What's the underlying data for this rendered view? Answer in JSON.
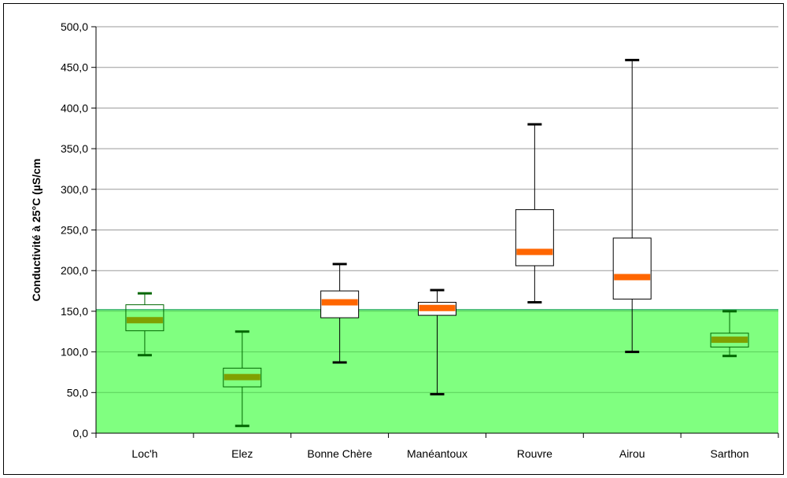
{
  "chart_data": {
    "type": "box",
    "ylabel": "Conductivité à 25°C (µS/cm",
    "ylim": [
      0,
      500
    ],
    "y_ticks": [
      0,
      50,
      100,
      150,
      200,
      250,
      300,
      350,
      400,
      450,
      500
    ],
    "y_tick_labels": [
      "0,0",
      "50,0",
      "100,0",
      "150,0",
      "200,0",
      "250,0",
      "300,0",
      "350,0",
      "400,0",
      "450,0",
      "500,0"
    ],
    "grid": true,
    "threshold_band": {
      "from": 0,
      "to": 152,
      "color": "#80ff80"
    },
    "colors": {
      "median_within_band": "#80a000",
      "median_above_band": "#ff6600",
      "whisker_within_band": "#006600",
      "whisker_above_band": "#000000",
      "band_edge": "#3cb371"
    },
    "categories": [
      "Loc'h",
      "Elez",
      "Bonne Chère",
      "Manéantoux",
      "Rouvre",
      "Airou",
      "Sarthon"
    ],
    "boxes": [
      {
        "min": 96,
        "q1": 126,
        "median": 139,
        "q3": 158,
        "max": 172
      },
      {
        "min": 9,
        "q1": 57,
        "median": 69,
        "q3": 80,
        "max": 125
      },
      {
        "min": 87,
        "q1": 142,
        "median": 161,
        "q3": 175,
        "max": 208
      },
      {
        "min": 48,
        "q1": 145,
        "median": 154,
        "q3": 161,
        "max": 176
      },
      {
        "min": 161,
        "q1": 206,
        "median": 223,
        "q3": 275,
        "max": 380
      },
      {
        "min": 100,
        "q1": 165,
        "median": 192,
        "q3": 240,
        "max": 459
      },
      {
        "min": 95,
        "q1": 106,
        "median": 115,
        "q3": 123,
        "max": 150
      }
    ]
  }
}
